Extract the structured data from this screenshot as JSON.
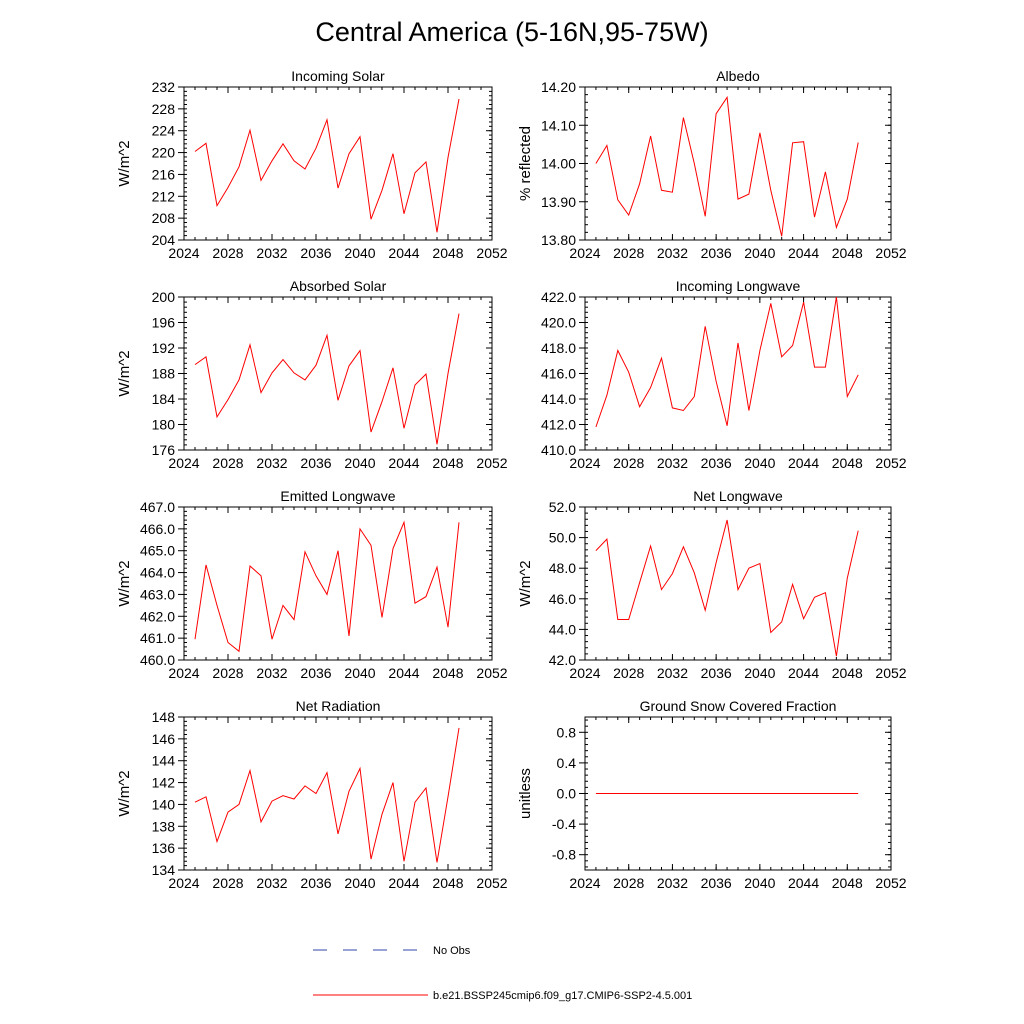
{
  "figure": {
    "title": "Central America (5-16N,95-75W)"
  },
  "legend": {
    "entries": [
      {
        "label": "No Obs",
        "color": "#3344aa",
        "style": "dashed"
      },
      {
        "label": "b.e21.BSSP245cmip6.f09_g17.CMIP6-SSP2-4.5.001",
        "color": "#ff0000",
        "style": "solid"
      }
    ]
  },
  "chart_data": [
    {
      "type": "line",
      "title": "Incoming Solar",
      "ylabel": "W/m^2",
      "xlabel": "",
      "xlim": [
        2024,
        2052
      ],
      "xticks": [
        2024,
        2028,
        2032,
        2036,
        2040,
        2044,
        2048,
        2052
      ],
      "ylim": [
        204,
        232
      ],
      "yticks": [
        204,
        208,
        212,
        216,
        220,
        224,
        228,
        232
      ],
      "ytick_labels": [
        "204",
        "208",
        "212",
        "216",
        "220",
        "224",
        "228",
        "232"
      ],
      "series": [
        {
          "color": "#ff0000",
          "x": [
            2025,
            2026,
            2027,
            2028,
            2029,
            2030,
            2031,
            2032,
            2033,
            2034,
            2035,
            2036,
            2037,
            2038,
            2039,
            2040,
            2041,
            2042,
            2043,
            2044,
            2045,
            2046,
            2047,
            2048,
            2049
          ],
          "y": [
            220.2,
            221.7,
            210.3,
            213.6,
            217.4,
            224.1,
            214.9,
            218.5,
            221.6,
            218.5,
            217.0,
            220.8,
            226.0,
            213.5,
            219.8,
            222.9,
            207.8,
            213.1,
            219.8,
            208.8,
            216.3,
            218.3,
            205.4,
            219.1,
            229.8
          ]
        }
      ]
    },
    {
      "type": "line",
      "title": "Albedo",
      "ylabel": "% reflected",
      "xlabel": "",
      "xlim": [
        2024,
        2052
      ],
      "xticks": [
        2024,
        2028,
        2032,
        2036,
        2040,
        2044,
        2048,
        2052
      ],
      "ylim": [
        13.8,
        14.2
      ],
      "yticks": [
        13.8,
        13.9,
        14.0,
        14.1,
        14.2
      ],
      "ytick_labels": [
        "13.80",
        "13.90",
        "14.00",
        "14.10",
        "14.20"
      ],
      "series": [
        {
          "color": "#ff0000",
          "x": [
            2025,
            2026,
            2027,
            2028,
            2029,
            2030,
            2031,
            2032,
            2033,
            2034,
            2035,
            2036,
            2037,
            2038,
            2039,
            2040,
            2041,
            2042,
            2043,
            2044,
            2045,
            2046,
            2047,
            2048,
            2049
          ],
          "y": [
            14.0,
            14.047,
            13.905,
            13.865,
            13.947,
            14.072,
            13.93,
            13.925,
            14.12,
            14.0,
            13.862,
            14.13,
            14.173,
            13.907,
            13.92,
            14.08,
            13.93,
            13.81,
            14.054,
            14.057,
            13.86,
            13.978,
            13.833,
            13.907,
            14.055
          ]
        }
      ]
    },
    {
      "type": "line",
      "title": "Absorbed Solar",
      "ylabel": "W/m^2",
      "xlabel": "",
      "xlim": [
        2024,
        2052
      ],
      "xticks": [
        2024,
        2028,
        2032,
        2036,
        2040,
        2044,
        2048,
        2052
      ],
      "ylim": [
        176,
        200
      ],
      "yticks": [
        176,
        180,
        184,
        188,
        192,
        196,
        200
      ],
      "ytick_labels": [
        "176",
        "180",
        "184",
        "188",
        "192",
        "196",
        "200"
      ],
      "series": [
        {
          "color": "#ff0000",
          "x": [
            2025,
            2026,
            2027,
            2028,
            2029,
            2030,
            2031,
            2032,
            2033,
            2034,
            2035,
            2036,
            2037,
            2038,
            2039,
            2040,
            2041,
            2042,
            2043,
            2044,
            2045,
            2046,
            2047,
            2048,
            2049
          ],
          "y": [
            189.4,
            190.6,
            181.2,
            183.9,
            187.0,
            192.5,
            185.0,
            188.1,
            190.2,
            188.1,
            187.0,
            189.3,
            194.0,
            183.8,
            189.2,
            191.6,
            178.8,
            183.6,
            188.9,
            179.4,
            186.2,
            187.9,
            176.9,
            188.0,
            197.4
          ]
        }
      ]
    },
    {
      "type": "line",
      "title": "Incoming Longwave",
      "ylabel": "",
      "xlabel": "",
      "xlim": [
        2024,
        2052
      ],
      "xticks": [
        2024,
        2028,
        2032,
        2036,
        2040,
        2044,
        2048,
        2052
      ],
      "ylim": [
        410,
        422
      ],
      "yticks": [
        410,
        412,
        414,
        416,
        418,
        420,
        422
      ],
      "ytick_labels": [
        "410.0",
        "412.0",
        "414.0",
        "416.0",
        "418.0",
        "420.0",
        "422.0"
      ],
      "series": [
        {
          "color": "#ff0000",
          "x": [
            2025,
            2026,
            2027,
            2028,
            2029,
            2030,
            2031,
            2032,
            2033,
            2034,
            2035,
            2036,
            2037,
            2038,
            2039,
            2040,
            2041,
            2042,
            2043,
            2044,
            2045,
            2046,
            2047,
            2048,
            2049
          ],
          "y": [
            411.8,
            414.3,
            417.8,
            416.1,
            413.4,
            414.9,
            417.2,
            413.3,
            413.1,
            414.2,
            419.7,
            415.4,
            411.9,
            418.4,
            413.1,
            417.8,
            421.5,
            417.3,
            418.2,
            421.6,
            416.5,
            416.5,
            422.0,
            414.2,
            415.9
          ]
        }
      ]
    },
    {
      "type": "line",
      "title": "Emitted Longwave",
      "ylabel": "W/m^2",
      "xlabel": "",
      "xlim": [
        2024,
        2052
      ],
      "xticks": [
        2024,
        2028,
        2032,
        2036,
        2040,
        2044,
        2048,
        2052
      ],
      "ylim": [
        460,
        467
      ],
      "yticks": [
        460,
        461,
        462,
        463,
        464,
        465,
        466,
        467
      ],
      "ytick_labels": [
        "460.0",
        "461.0",
        "462.0",
        "463.0",
        "464.0",
        "465.0",
        "466.0",
        "467.0"
      ],
      "series": [
        {
          "color": "#ff0000",
          "x": [
            2025,
            2026,
            2027,
            2028,
            2029,
            2030,
            2031,
            2032,
            2033,
            2034,
            2035,
            2036,
            2037,
            2038,
            2039,
            2040,
            2041,
            2042,
            2043,
            2044,
            2045,
            2046,
            2047,
            2048,
            2049
          ],
          "y": [
            460.95,
            464.35,
            462.5,
            460.8,
            460.4,
            464.3,
            463.85,
            460.95,
            462.5,
            461.85,
            464.95,
            463.85,
            463.0,
            465.0,
            461.1,
            466.0,
            465.25,
            461.95,
            465.1,
            466.3,
            462.6,
            462.9,
            464.25,
            461.5,
            466.3
          ]
        }
      ]
    },
    {
      "type": "line",
      "title": "Net Longwave",
      "ylabel": "W/m^2",
      "xlabel": "",
      "xlim": [
        2024,
        2052
      ],
      "xticks": [
        2024,
        2028,
        2032,
        2036,
        2040,
        2044,
        2048,
        2052
      ],
      "ylim": [
        42,
        52
      ],
      "yticks": [
        42,
        44,
        46,
        48,
        50,
        52
      ],
      "ytick_labels": [
        "42.0",
        "44.0",
        "46.0",
        "48.0",
        "50.0",
        "52.0"
      ],
      "series": [
        {
          "color": "#ff0000",
          "x": [
            2025,
            2026,
            2027,
            2028,
            2029,
            2030,
            2031,
            2032,
            2033,
            2034,
            2035,
            2036,
            2037,
            2038,
            2039,
            2040,
            2041,
            2042,
            2043,
            2044,
            2045,
            2046,
            2047,
            2048,
            2049
          ],
          "y": [
            49.15,
            49.9,
            44.65,
            44.65,
            47.05,
            49.45,
            46.6,
            47.65,
            49.4,
            47.7,
            45.25,
            48.35,
            51.15,
            46.6,
            48.0,
            48.3,
            43.8,
            44.5,
            46.95,
            44.7,
            46.1,
            46.4,
            42.25,
            47.35,
            50.45
          ]
        }
      ]
    },
    {
      "type": "line",
      "title": "Net Radiation",
      "ylabel": "W/m^2",
      "xlabel": "",
      "xlim": [
        2024,
        2052
      ],
      "xticks": [
        2024,
        2028,
        2032,
        2036,
        2040,
        2044,
        2048,
        2052
      ],
      "ylim": [
        134,
        148
      ],
      "yticks": [
        134,
        136,
        138,
        140,
        142,
        144,
        146,
        148
      ],
      "ytick_labels": [
        "134",
        "136",
        "138",
        "140",
        "142",
        "144",
        "146",
        "148"
      ],
      "series": [
        {
          "color": "#ff0000",
          "x": [
            2025,
            2026,
            2027,
            2028,
            2029,
            2030,
            2031,
            2032,
            2033,
            2034,
            2035,
            2036,
            2037,
            2038,
            2039,
            2040,
            2041,
            2042,
            2043,
            2044,
            2045,
            2046,
            2047,
            2048,
            2049
          ],
          "y": [
            140.2,
            140.7,
            136.6,
            139.3,
            140.0,
            143.1,
            138.4,
            140.3,
            140.8,
            140.5,
            141.7,
            141.0,
            142.9,
            137.3,
            141.2,
            143.3,
            135.0,
            139.1,
            142.0,
            134.8,
            140.2,
            141.5,
            134.7,
            140.7,
            147.0
          ]
        }
      ]
    },
    {
      "type": "line",
      "title": "Ground Snow Covered Fraction",
      "ylabel": "unitless",
      "xlabel": "",
      "xlim": [
        2024,
        2052
      ],
      "xticks": [
        2024,
        2028,
        2032,
        2036,
        2040,
        2044,
        2048,
        2052
      ],
      "ylim": [
        -1.0,
        1.0
      ],
      "yticks": [
        -0.8,
        -0.4,
        0.0,
        0.4,
        0.8
      ],
      "ytick_labels": [
        "-0.8",
        "-0.4",
        "0.0",
        "0.4",
        "0.8"
      ],
      "series": [
        {
          "color": "#ff0000",
          "x": [
            2025,
            2026,
            2027,
            2028,
            2029,
            2030,
            2031,
            2032,
            2033,
            2034,
            2035,
            2036,
            2037,
            2038,
            2039,
            2040,
            2041,
            2042,
            2043,
            2044,
            2045,
            2046,
            2047,
            2048,
            2049
          ],
          "y": [
            0,
            0,
            0,
            0,
            0,
            0,
            0,
            0,
            0,
            0,
            0,
            0,
            0,
            0,
            0,
            0,
            0,
            0,
            0,
            0,
            0,
            0,
            0,
            0,
            0
          ]
        }
      ]
    }
  ]
}
